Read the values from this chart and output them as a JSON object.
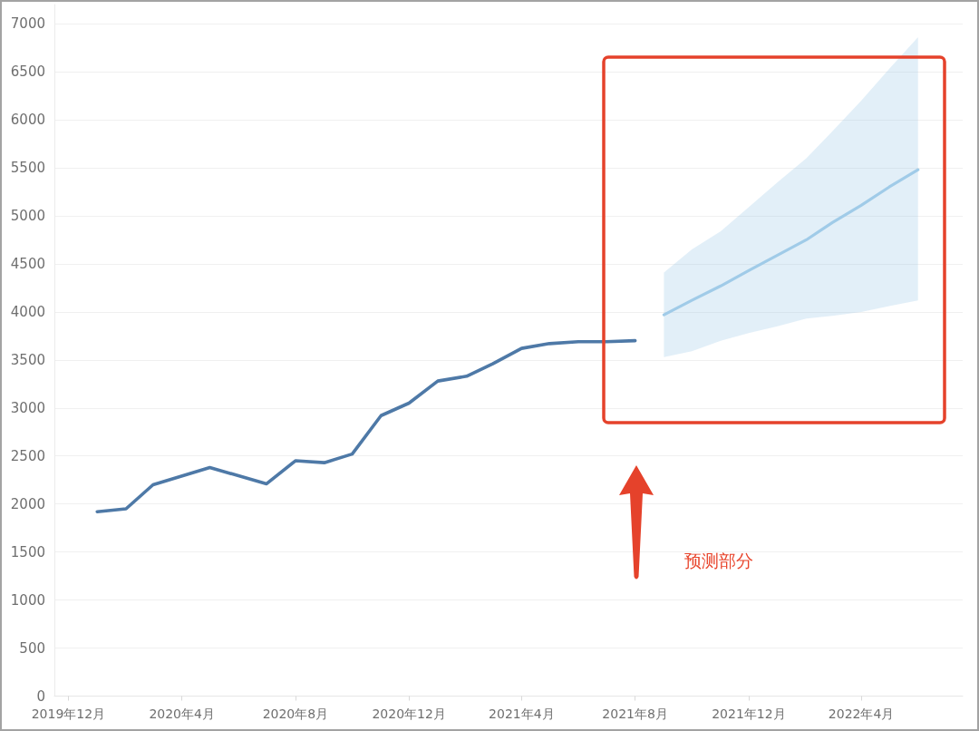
{
  "chart_data": {
    "type": "line",
    "x": [
      "2020-01",
      "2020-02",
      "2020-03",
      "2020-05",
      "2020-07",
      "2020-08",
      "2020-09",
      "2020-10",
      "2020-11",
      "2020-12",
      "2021-01",
      "2021-02",
      "2021-03",
      "2021-04",
      "2021-05",
      "2021-06",
      "2021-07",
      "2021-08"
    ],
    "series": [
      {
        "color": "#4e79a7",
        "values": [
          1920,
          1950,
          2200,
          2380,
          2210,
          2450,
          2430,
          2520,
          2920,
          3050,
          3280,
          3330,
          3460,
          3620,
          3670,
          3690,
          3690,
          3700
        ]
      },
      {
        "color": "#a0cbe8",
        "x": [
          "2021-09",
          "2021-10",
          "2021-11",
          "2021-12",
          "2022-01",
          "2022-02",
          "2022-03",
          "2022-04",
          "2022-05",
          "2022-06"
        ],
        "values": [
          3970,
          4120,
          4270,
          4430,
          4590,
          4750,
          4930,
          5110,
          5300,
          5480
        ],
        "lower": [
          3530,
          3590,
          3700,
          3780,
          3850,
          3930,
          3960,
          4000,
          4060,
          4120
        ],
        "upper": [
          4410,
          4650,
          4840,
          5090,
          5350,
          5600,
          5880,
          6200,
          6530,
          6860
        ]
      }
    ],
    "xlim": [
      "2019-11-16",
      "2022-07-19"
    ],
    "xticks": [
      {
        "value": "2019-12",
        "label": "2019年12月"
      },
      {
        "value": "2020-04",
        "label": "2020年4月"
      },
      {
        "value": "2020-08",
        "label": "2020年8月"
      },
      {
        "value": "2020-12",
        "label": "2020年12月"
      },
      {
        "value": "2021-04",
        "label": "2021年4月"
      },
      {
        "value": "2021-08",
        "label": "2021年8月"
      },
      {
        "value": "2021-12",
        "label": "2021年12月"
      },
      {
        "value": "2022-04",
        "label": "2022年4月"
      }
    ],
    "ylim": [
      0,
      7200
    ],
    "yticks": [
      0,
      500,
      1000,
      1500,
      2000,
      2500,
      3000,
      3500,
      4000,
      4500,
      5000,
      5500,
      6000,
      6500,
      7000
    ],
    "grid": "y",
    "marker": "none",
    "line_style": "solid",
    "annotations": [
      "预测部分"
    ]
  }
}
